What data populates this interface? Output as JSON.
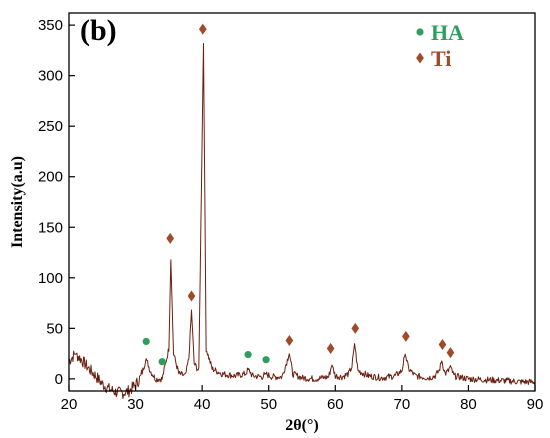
{
  "chart_data": {
    "type": "line",
    "panel_label": "(b)",
    "title": "",
    "xlabel": "2θ(°)",
    "ylabel": "Intensity(a.u)",
    "xlim": [
      20,
      90
    ],
    "ylim": [
      -12,
      362
    ],
    "xticks": [
      20,
      30,
      40,
      50,
      60,
      70,
      80,
      90
    ],
    "yticks": [
      0,
      50,
      100,
      150,
      200,
      250,
      300,
      350
    ],
    "grid": false,
    "legend_position": "top-right",
    "legend": [
      {
        "label": "HA",
        "color": "#2e9e5e",
        "marker": "circle"
      },
      {
        "label": "Ti",
        "color": "#a04a2a",
        "marker": "diamond"
      }
    ],
    "line_color": "#6b1f10",
    "baseline": [
      [
        20.0,
        18
      ],
      [
        21.0,
        25
      ],
      [
        22.0,
        18
      ],
      [
        23.0,
        10
      ],
      [
        24.0,
        3
      ],
      [
        25.0,
        -5
      ],
      [
        26.0,
        -10
      ],
      [
        27.0,
        -13
      ],
      [
        28.0,
        -14
      ],
      [
        29.0,
        -12
      ],
      [
        30.0,
        -6
      ],
      [
        30.8,
        2
      ],
      [
        31.6,
        20
      ],
      [
        32.2,
        8
      ],
      [
        33.0,
        0
      ],
      [
        34.0,
        0
      ],
      [
        35.0,
        30
      ],
      [
        35.3,
        118
      ],
      [
        35.7,
        25
      ],
      [
        36.5,
        5
      ],
      [
        37.5,
        3
      ],
      [
        38.0,
        20
      ],
      [
        38.4,
        68
      ],
      [
        38.8,
        15
      ],
      [
        39.5,
        8
      ],
      [
        40.2,
        332
      ],
      [
        40.6,
        30
      ],
      [
        41.5,
        10
      ],
      [
        43.0,
        5
      ],
      [
        45.0,
        3
      ],
      [
        46.5,
        5
      ],
      [
        47.0,
        10
      ],
      [
        47.5,
        3
      ],
      [
        49.0,
        2
      ],
      [
        49.5,
        5
      ],
      [
        50.5,
        2
      ],
      [
        52.0,
        2
      ],
      [
        53.1,
        25
      ],
      [
        53.6,
        5
      ],
      [
        55.0,
        1
      ],
      [
        57.0,
        0
      ],
      [
        59.0,
        2
      ],
      [
        59.5,
        14
      ],
      [
        60.0,
        3
      ],
      [
        61.0,
        2
      ],
      [
        62.0,
        5
      ],
      [
        62.5,
        12
      ],
      [
        62.9,
        35
      ],
      [
        63.4,
        8
      ],
      [
        65.0,
        3
      ],
      [
        67.0,
        1
      ],
      [
        69.0,
        3
      ],
      [
        70.0,
        8
      ],
      [
        70.5,
        25
      ],
      [
        71.0,
        10
      ],
      [
        72.0,
        3
      ],
      [
        74.0,
        1
      ],
      [
        75.0,
        3
      ],
      [
        75.6,
        8
      ],
      [
        76.0,
        18
      ],
      [
        76.5,
        5
      ],
      [
        77.0,
        8
      ],
      [
        77.3,
        13
      ],
      [
        77.8,
        3
      ],
      [
        80.0,
        0
      ],
      [
        83.0,
        -1
      ],
      [
        86.0,
        -2
      ],
      [
        88.0,
        -3
      ],
      [
        90.0,
        -3
      ]
    ],
    "markers": [
      {
        "phase": "HA",
        "x": 31.6,
        "y": 37
      },
      {
        "phase": "HA",
        "x": 34.0,
        "y": 17
      },
      {
        "phase": "HA",
        "x": 46.9,
        "y": 24
      },
      {
        "phase": "HA",
        "x": 49.6,
        "y": 19
      },
      {
        "phase": "Ti",
        "x": 35.2,
        "y": 139
      },
      {
        "phase": "Ti",
        "x": 38.4,
        "y": 82
      },
      {
        "phase": "Ti",
        "x": 40.1,
        "y": 346
      },
      {
        "phase": "Ti",
        "x": 53.1,
        "y": 38
      },
      {
        "phase": "Ti",
        "x": 59.3,
        "y": 30
      },
      {
        "phase": "Ti",
        "x": 63.0,
        "y": 50
      },
      {
        "phase": "Ti",
        "x": 70.6,
        "y": 42
      },
      {
        "phase": "Ti",
        "x": 76.1,
        "y": 34
      },
      {
        "phase": "Ti",
        "x": 77.3,
        "y": 26
      }
    ]
  }
}
